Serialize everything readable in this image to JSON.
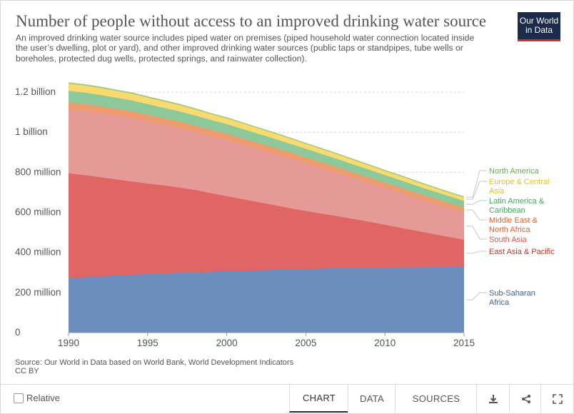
{
  "header": {
    "title": "Number of people without access to an improved drinking water source",
    "subtitle": "An improved drinking water source includes piped water on premises (piped household water connection located inside the user’s dwelling, plot or yard), and other improved drinking water sources (public taps or standpipes, tube wells or boreholes, protected dug wells, protected springs, and rainwater collection).",
    "logo_line1": "Our World",
    "logo_line2": "in Data"
  },
  "source_line1": "Source: Our World in Data based on World Bank, World Development Indicators",
  "source_line2": "CC BY",
  "footer": {
    "relative_label": "Relative",
    "tabs": [
      "CHART",
      "DATA",
      "SOURCES"
    ],
    "active_tab": "CHART",
    "icons": [
      "download-icon",
      "share-icon",
      "fullscreen-icon"
    ]
  },
  "chart_data": {
    "type": "area",
    "stacked": true,
    "title": "Number of people without access to an improved drinking water source",
    "x": [
      1990,
      1991,
      1992,
      1993,
      1994,
      1995,
      1996,
      1997,
      1998,
      1999,
      2000,
      2001,
      2002,
      2003,
      2004,
      2005,
      2006,
      2007,
      2008,
      2009,
      2010,
      2011,
      2012,
      2013,
      2014,
      2015
    ],
    "xticks": [
      1990,
      1995,
      2000,
      2005,
      2010,
      2015
    ],
    "xtick_labels": [
      "1990",
      "1995",
      "2000",
      "2005",
      "2010",
      "2015"
    ],
    "xlim": [
      1990,
      2015
    ],
    "ylim": [
      0,
      1300000000
    ],
    "yticks": [
      0,
      200000000,
      400000000,
      600000000,
      800000000,
      1000000000,
      1200000000
    ],
    "ytick_labels": [
      "0",
      "200 million",
      "400 million",
      "600 million",
      "800 million",
      "1 billion",
      "1.2 billion"
    ],
    "grid": true,
    "legend": "right, labels aligned to series ends",
    "series": [
      {
        "name": "Sub-Saharan Africa",
        "label_lines": [
          "Sub-Saharan",
          "Africa"
        ],
        "color": "#6c8ebf",
        "values": [
          272,
          276,
          281,
          285,
          289,
          292,
          295,
          299,
          302,
          304,
          307,
          309,
          311,
          313,
          315,
          317,
          319,
          321,
          322,
          323,
          324,
          325,
          326,
          327,
          328,
          328
        ]
      },
      {
        "name": "East Asia & Pacific",
        "label_lines": [
          "East Asia & Pacific"
        ],
        "color": "#e06666",
        "values": [
          523,
          510,
          495,
          480,
          465,
          452,
          440,
          425,
          410,
          392,
          374,
          357,
          340,
          323,
          306,
          290,
          275,
          260,
          245,
          230,
          214,
          198,
          182,
          166,
          150,
          136
        ]
      },
      {
        "name": "South Asia",
        "label_lines": [
          "South Asia"
        ],
        "color": "#e59a97",
        "values": [
          318,
          320,
          320,
          318,
          317,
          310,
          302,
          296,
          289,
          284,
          280,
          272,
          264,
          256,
          248,
          237,
          226,
          215,
          204,
          193,
          183,
          173,
          163,
          153,
          145,
          135
        ]
      },
      {
        "name": "Middle East & North Africa",
        "label_lines": [
          "Middle East &",
          "North Africa"
        ],
        "color": "#ee9c6e",
        "values": [
          35,
          35,
          34,
          34,
          34,
          33,
          33,
          33,
          32,
          32,
          32,
          31,
          31,
          31,
          30,
          30,
          29,
          29,
          28,
          28,
          27,
          27,
          26,
          26,
          25,
          25
        ]
      },
      {
        "name": "Latin America & Caribbean",
        "label_lines": [
          "Latin America &",
          "Caribbean"
        ],
        "color": "#8cc899",
        "values": [
          58,
          57,
          56,
          55,
          54,
          53,
          52,
          51,
          50,
          49,
          48,
          47,
          46,
          45,
          44,
          43,
          42,
          41,
          40,
          39,
          38,
          37,
          36,
          35,
          34,
          33
        ]
      },
      {
        "name": "Europe & Central Asia",
        "label_lines": [
          "Europe & Central",
          "Asia"
        ],
        "color": "#f9da6f",
        "values": [
          36,
          35,
          35,
          34,
          33,
          32,
          32,
          31,
          30,
          29,
          28,
          28,
          27,
          26,
          25,
          24,
          24,
          23,
          22,
          21,
          20,
          20,
          19,
          18,
          17,
          17
        ]
      },
      {
        "name": "North America",
        "label_lines": [
          "North America"
        ],
        "color": "#9dc97c",
        "values": [
          5,
          5,
          5,
          5,
          5,
          5,
          5,
          5,
          5,
          4,
          4,
          4,
          4,
          4,
          4,
          4,
          4,
          4,
          4,
          4,
          4,
          4,
          4,
          4,
          4,
          4
        ]
      }
    ],
    "value_unit": "million people"
  },
  "label_colors": {
    "Sub-Saharan Africa": "#3f5e9c",
    "East Asia & Pacific": "#c0392b",
    "South Asia": "#d9534f",
    "Middle East & North Africa": "#e5622b",
    "Latin America & Caribbean": "#45a35d",
    "Europe & Central Asia": "#e6c218",
    "North America": "#6aa84f"
  }
}
